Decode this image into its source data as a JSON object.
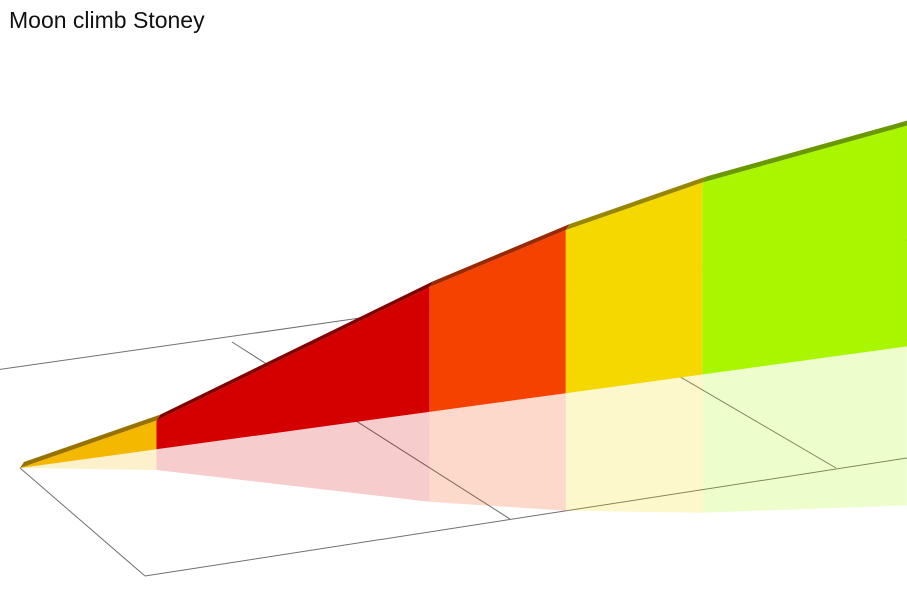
{
  "title": "Moon climb Stoney",
  "chart_data": {
    "type": "area",
    "title": "Moon climb Stoney",
    "subtitle": "",
    "xlabel": "",
    "ylabel": "",
    "grid": true,
    "legend": "none",
    "segments": [
      {
        "x_start": 0,
        "x_end": 1,
        "elevation_start": 0,
        "elevation_end": 1.5,
        "color": "#f5b800"
      },
      {
        "x_start": 1,
        "x_end": 3,
        "elevation_start": 1.5,
        "elevation_end": 6.5,
        "color": "#d40000"
      },
      {
        "x_start": 3,
        "x_end": 4,
        "elevation_start": 6.5,
        "elevation_end": 8.5,
        "color": "#f54200"
      },
      {
        "x_start": 4,
        "x_end": 5,
        "elevation_start": 8.5,
        "elevation_end": 10,
        "color": "#f5d800"
      },
      {
        "x_start": 5,
        "x_end": 6.5,
        "elevation_start": 10,
        "elevation_end": 11.5,
        "color": "#aaf500"
      }
    ]
  }
}
